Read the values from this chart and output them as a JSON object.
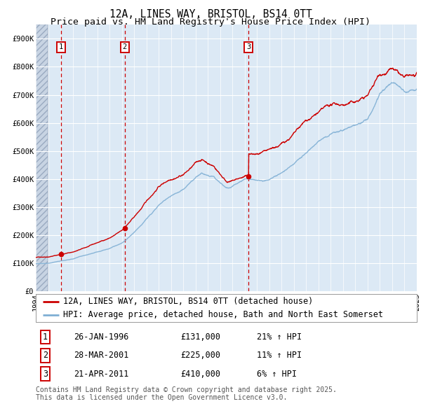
{
  "title": "12A, LINES WAY, BRISTOL, BS14 0TT",
  "subtitle": "Price paid vs. HM Land Registry's House Price Index (HPI)",
  "ylim": [
    0,
    950000
  ],
  "yticks": [
    0,
    100000,
    200000,
    300000,
    400000,
    500000,
    600000,
    700000,
    800000,
    900000
  ],
  "ytick_labels": [
    "£0",
    "£100K",
    "£200K",
    "£300K",
    "£400K",
    "£500K",
    "£600K",
    "£700K",
    "£800K",
    "£900K"
  ],
  "x_start_year": 1994,
  "x_end_year": 2025,
  "sale_dates": [
    1996.07,
    2001.24,
    2011.3
  ],
  "sale_prices": [
    131000,
    225000,
    410000
  ],
  "sale_labels": [
    "1",
    "2",
    "3"
  ],
  "legend_line1": "12A, LINES WAY, BRISTOL, BS14 0TT (detached house)",
  "legend_line2": "HPI: Average price, detached house, Bath and North East Somerset",
  "table_entries": [
    {
      "num": "1",
      "date": "26-JAN-1996",
      "price": "£131,000",
      "pct": "21% ↑ HPI"
    },
    {
      "num": "2",
      "date": "28-MAR-2001",
      "price": "£225,000",
      "pct": "11% ↑ HPI"
    },
    {
      "num": "3",
      "date": "21-APR-2011",
      "price": "£410,000",
      "pct": "6% ↑ HPI"
    }
  ],
  "footnote": "Contains HM Land Registry data © Crown copyright and database right 2025.\nThis data is licensed under the Open Government Licence v3.0.",
  "red_line_color": "#cc0000",
  "blue_line_color": "#7fafd4",
  "bg_color": "#dce9f5",
  "hatch_color": "#c8d4e3",
  "grid_color": "#ffffff",
  "vline_color": "#cc0000",
  "box_border_color": "#cc0000",
  "title_fontsize": 10.5,
  "subtitle_fontsize": 9.5,
  "tick_fontsize": 7.5,
  "legend_fontsize": 8.5,
  "table_fontsize": 8.5,
  "footnote_fontsize": 7.0
}
